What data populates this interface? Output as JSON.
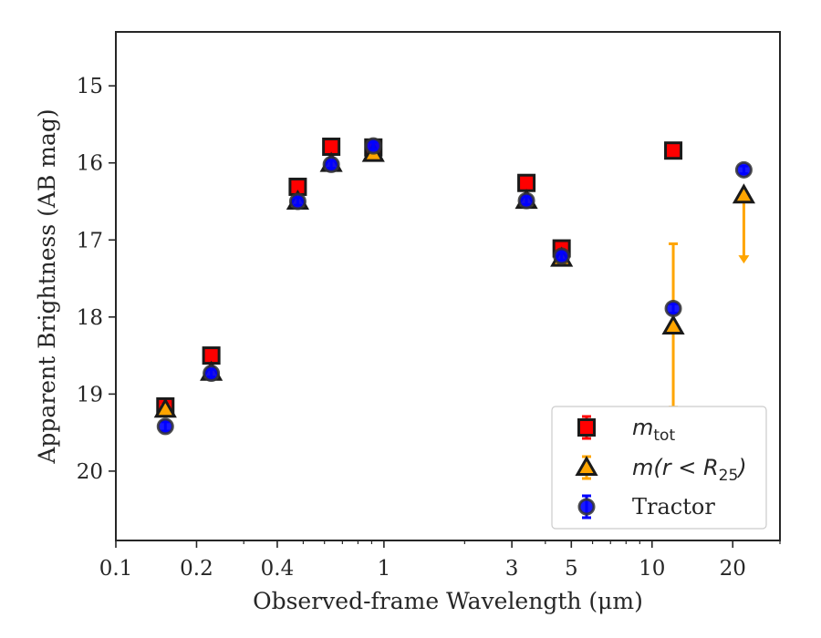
{
  "chart_data": {
    "type": "scatter",
    "x_scale": "log",
    "y_inverted": true,
    "xlim": [
      0.1,
      30
    ],
    "ylim": [
      20.9,
      14.3
    ],
    "xlabel": "Observed-frame Wavelength (μm)",
    "ylabel": "Apparent Brightness (AB mag)",
    "x_tick_labels": [
      "0.1",
      "0.2",
      "0.4",
      "1",
      "3",
      "5",
      "10",
      "20"
    ],
    "y_tick_labels": [
      "15",
      "16",
      "17",
      "18",
      "19",
      "20"
    ],
    "grid": false,
    "legend_position": "bottom-right",
    "series": [
      {
        "name": "m_tot",
        "legend_label": "m",
        "legend_subscript": "tot",
        "marker": "square",
        "color": "#ff0000",
        "edge_color": "#1a1a1a",
        "error_color": "#ff0000",
        "points": [
          {
            "x": 0.153,
            "y": 19.16,
            "err": 0.05
          },
          {
            "x": 0.227,
            "y": 18.5,
            "err": 0.05
          },
          {
            "x": 0.477,
            "y": 16.31,
            "err": 0.05
          },
          {
            "x": 0.636,
            "y": 15.79,
            "err": 0.05
          },
          {
            "x": 0.913,
            "y": 15.8,
            "err": 0.05
          },
          {
            "x": 3.4,
            "y": 16.26,
            "err": 0.05
          },
          {
            "x": 4.6,
            "y": 17.11,
            "err": 0.05
          },
          {
            "x": 12.0,
            "y": 15.84,
            "err": 0.05
          }
        ]
      },
      {
        "name": "m(r < R_25)",
        "legend_label": "m(r < R",
        "legend_subscript": "25",
        "legend_suffix": ")",
        "marker": "triangle",
        "color": "#ffa500",
        "edge_color": "#1a1a1a",
        "error_color": "#ffa500",
        "points": [
          {
            "x": 0.153,
            "y": 19.2,
            "err": 0.05
          },
          {
            "x": 0.227,
            "y": 18.72,
            "err": 0.05
          },
          {
            "x": 0.477,
            "y": 16.5,
            "err": 0.05
          },
          {
            "x": 0.636,
            "y": 16.01,
            "err": 0.05
          },
          {
            "x": 0.913,
            "y": 15.88,
            "err": 0.05
          },
          {
            "x": 3.4,
            "y": 16.49,
            "err": 0.05
          },
          {
            "x": 4.6,
            "y": 17.24,
            "err": 0.05
          },
          {
            "x": 12.0,
            "y": 18.12,
            "err_low": 1.07,
            "err_high": 1.05
          },
          {
            "x": 22.0,
            "y": 16.42,
            "err_low": 0.0,
            "err_high": 0.85,
            "upper_limit": true
          }
        ]
      },
      {
        "name": "Tractor",
        "legend_label": "Tractor",
        "marker": "circle",
        "color": "#0000ff",
        "edge_color": "#333333",
        "error_color": "#0000ff",
        "points": [
          {
            "x": 0.153,
            "y": 19.42,
            "err": 0.06
          },
          {
            "x": 0.227,
            "y": 18.73,
            "err": 0.05
          },
          {
            "x": 0.477,
            "y": 16.5,
            "err": 0.05
          },
          {
            "x": 0.636,
            "y": 16.02,
            "err": 0.05
          },
          {
            "x": 0.913,
            "y": 15.78,
            "err": 0.05
          },
          {
            "x": 3.4,
            "y": 16.49,
            "err": 0.05
          },
          {
            "x": 4.6,
            "y": 17.21,
            "err": 0.05
          },
          {
            "x": 12.0,
            "y": 17.89,
            "err": 0.06
          },
          {
            "x": 22.0,
            "y": 16.09,
            "err": 0.05
          }
        ]
      }
    ]
  }
}
